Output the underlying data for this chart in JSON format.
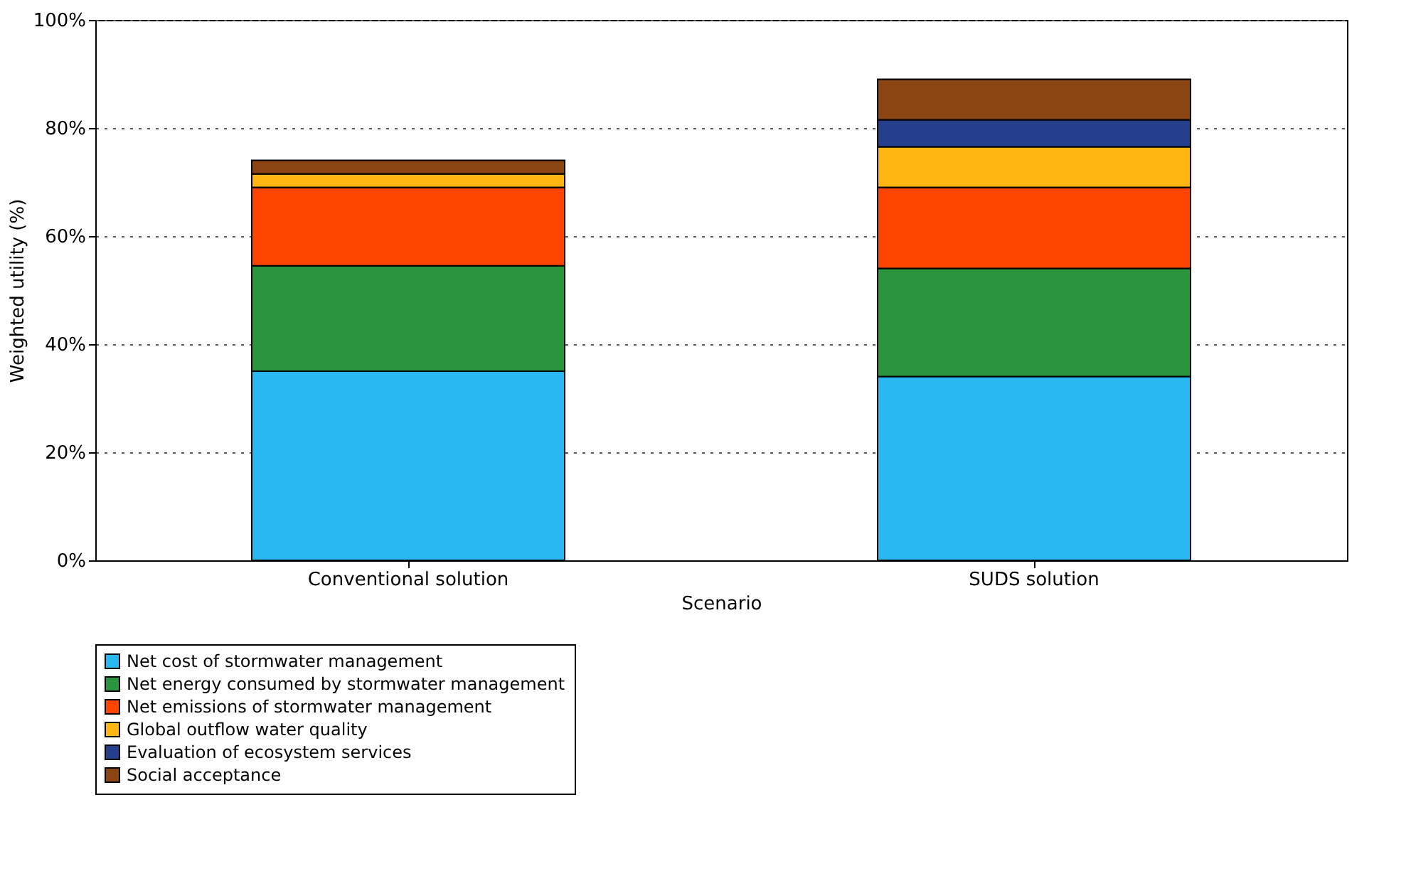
{
  "chart_data": {
    "type": "bar",
    "stacked": true,
    "xlabel": "Scenario",
    "ylabel": "Weighted utility (%)",
    "categories": [
      "Conventional solution",
      "SUDS solution"
    ],
    "series": [
      {
        "name": "Net cost of stormwater management",
        "color": "#29b9f0",
        "values": [
          35,
          34
        ]
      },
      {
        "name": "Net energy consumed by stormwater management",
        "color": "#2a943e",
        "values": [
          19.5,
          20
        ]
      },
      {
        "name": "Net emissions of stormwater management",
        "color": "#ff4500",
        "values": [
          14.5,
          15
        ]
      },
      {
        "name": "Global outflow water quality",
        "color": "#ffb612",
        "values": [
          2.5,
          7.5
        ]
      },
      {
        "name": "Evaluation of ecosystem services",
        "color": "#253f8c",
        "values": [
          0,
          5
        ]
      },
      {
        "name": "Social acceptance",
        "color": "#8b4513",
        "values": [
          2.5,
          7.5
        ]
      }
    ],
    "ylim": [
      0,
      100
    ],
    "yticks": [
      {
        "value": 0,
        "label": "0%"
      },
      {
        "value": 20,
        "label": "20%"
      },
      {
        "value": 40,
        "label": "40%"
      },
      {
        "value": 60,
        "label": "60%"
      },
      {
        "value": 80,
        "label": "80%"
      },
      {
        "value": 100,
        "label": "100%"
      }
    ],
    "grid": "y",
    "legend": "bottom"
  }
}
